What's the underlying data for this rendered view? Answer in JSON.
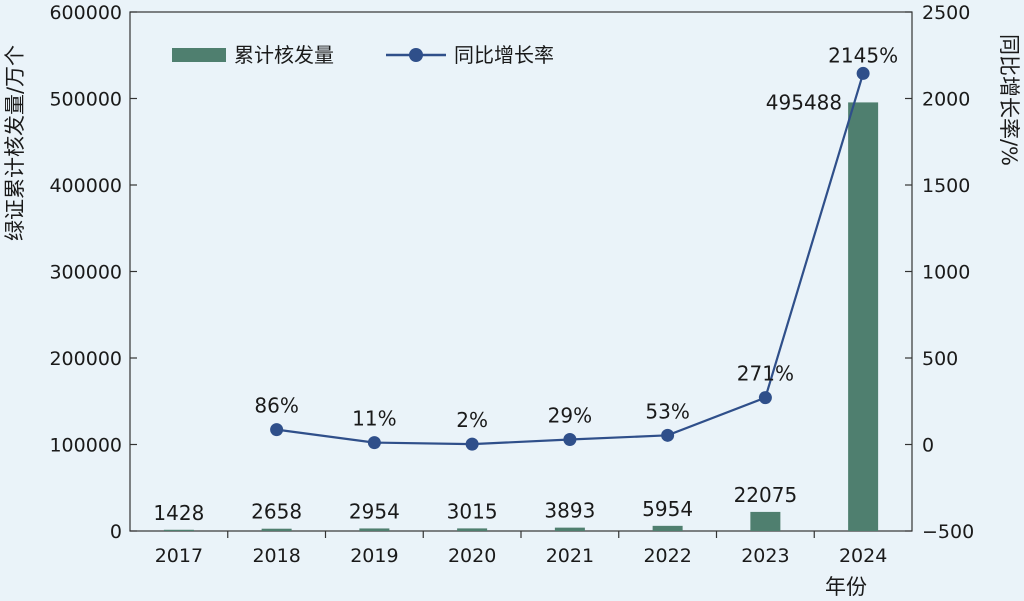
{
  "chart_data": {
    "type": "bar+line",
    "categories": [
      "2017",
      "2018",
      "2019",
      "2020",
      "2021",
      "2022",
      "2023",
      "2024"
    ],
    "series": [
      {
        "name": "累计核发量",
        "type": "bar",
        "axis": "left",
        "values": [
          1428,
          2658,
          2954,
          3015,
          3893,
          5954,
          22075,
          495488
        ],
        "labels": [
          "1428",
          "2658",
          "2954",
          "3015",
          "3893",
          "5954",
          "22075",
          "495488"
        ]
      },
      {
        "name": "同比增长率",
        "type": "line",
        "axis": "right",
        "values": [
          null,
          86,
          11,
          2,
          29,
          53,
          271,
          2145
        ],
        "labels": [
          "",
          "86%",
          "11%",
          "2%",
          "29%",
          "53%",
          "271%",
          "2145%"
        ]
      }
    ],
    "xlabel": "年份",
    "ylabel_left": "绿证累计核发量/万个",
    "ylabel_right": "同比增长率/%",
    "ylim_left": [
      0,
      600000
    ],
    "yticks_left": [
      "0",
      "100000",
      "200000",
      "300000",
      "400000",
      "500000",
      "600000"
    ],
    "ylim_right": [
      -500,
      2500
    ],
    "yticks_right": [
      "−500",
      "0",
      "500",
      "1000",
      "1500",
      "2000",
      "2500"
    ],
    "legend_position": "top-left",
    "grid": false,
    "colors": {
      "bar": "#4f7f6f",
      "line": "#2f4f8a",
      "background": "#eaf3f9"
    }
  }
}
